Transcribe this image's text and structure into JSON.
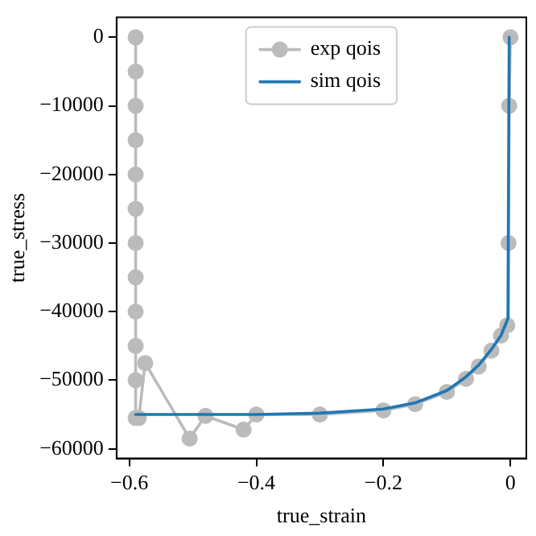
{
  "chart_data": {
    "type": "line",
    "xlabel": "true_strain",
    "ylabel": "true_stress",
    "xlim": [
      -0.62,
      0.025
    ],
    "xticks": [
      -0.6,
      -0.4,
      -0.2,
      0.0
    ],
    "ylim": [
      -61400,
      2900
    ],
    "yticks": [
      0,
      -10000,
      -20000,
      -30000,
      -40000,
      -50000,
      -60000
    ],
    "legend": "top",
    "grid": false,
    "series": [
      {
        "name": "exp qois",
        "color": "#bbbbbb",
        "marker": "circle",
        "x": [
          -0.59,
          -0.59,
          -0.59,
          -0.59,
          -0.59,
          -0.59,
          -0.59,
          -0.59,
          -0.59,
          -0.59,
          -0.59,
          -0.59,
          -0.585,
          -0.575,
          -0.505,
          -0.48,
          -0.42,
          -0.4,
          -0.3,
          -0.2,
          -0.15,
          -0.1,
          -0.07,
          -0.05,
          -0.03,
          -0.015,
          -0.005,
          -0.003,
          -0.002,
          0.0
        ],
        "values": [
          0,
          -5000,
          -10000,
          -15000,
          -20000,
          -25000,
          -30000,
          -35000,
          -40000,
          -45000,
          -50000,
          -55500,
          -55500,
          -47500,
          -58500,
          -55200,
          -57200,
          -55000,
          -55000,
          -54400,
          -53500,
          -51700,
          -49800,
          -48000,
          -45700,
          -43500,
          -42000,
          -30000,
          -10000,
          0
        ]
      },
      {
        "name": "sim qois",
        "color": "#1f77b4",
        "marker": "none",
        "x": [
          -0.59,
          -0.4,
          -0.3,
          -0.2,
          -0.15,
          -0.1,
          -0.07,
          -0.05,
          -0.03,
          -0.015,
          -0.004,
          -0.002
        ],
        "values": [
          -55000,
          -55000,
          -54800,
          -54200,
          -53300,
          -51500,
          -49500,
          -47800,
          -45500,
          -43500,
          -41000,
          0
        ]
      }
    ]
  }
}
